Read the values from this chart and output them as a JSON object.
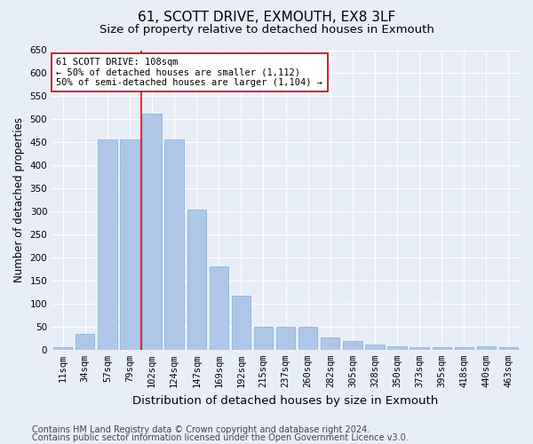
{
  "title_line1": "61, SCOTT DRIVE, EXMOUTH, EX8 3LF",
  "title_line2": "Size of property relative to detached houses in Exmouth",
  "xlabel": "Distribution of detached houses by size in Exmouth",
  "ylabel": "Number of detached properties",
  "categories": [
    "11sqm",
    "34sqm",
    "57sqm",
    "79sqm",
    "102sqm",
    "124sqm",
    "147sqm",
    "169sqm",
    "192sqm",
    "215sqm",
    "237sqm",
    "260sqm",
    "282sqm",
    "305sqm",
    "328sqm",
    "350sqm",
    "373sqm",
    "395sqm",
    "418sqm",
    "440sqm",
    "463sqm"
  ],
  "values": [
    5,
    35,
    457,
    457,
    512,
    457,
    305,
    180,
    118,
    50,
    50,
    50,
    27,
    18,
    12,
    7,
    5,
    5,
    5,
    7,
    5
  ],
  "bar_color": "#aec6e8",
  "bar_edgecolor": "#7ab0d4",
  "background_color": "#e8eef8",
  "grid_color": "#ffffff",
  "annotation_text": "61 SCOTT DRIVE: 108sqm\n← 50% of detached houses are smaller (1,112)\n50% of semi-detached houses are larger (1,104) →",
  "vline_color": "red",
  "annotation_box_facecolor": "#ffffff",
  "annotation_box_edgecolor": "#cc0000",
  "ylim": [
    0,
    650
  ],
  "yticks": [
    0,
    50,
    100,
    150,
    200,
    250,
    300,
    350,
    400,
    450,
    500,
    550,
    600,
    650
  ],
  "footnote_line1": "Contains HM Land Registry data © Crown copyright and database right 2024.",
  "footnote_line2": "Contains public sector information licensed under the Open Government Licence v3.0.",
  "title_fontsize": 11,
  "subtitle_fontsize": 9.5,
  "tick_fontsize": 7.5,
  "ylabel_fontsize": 8.5,
  "xlabel_fontsize": 9.5,
  "footnote_fontsize": 7,
  "ann_fontsize": 7.5
}
